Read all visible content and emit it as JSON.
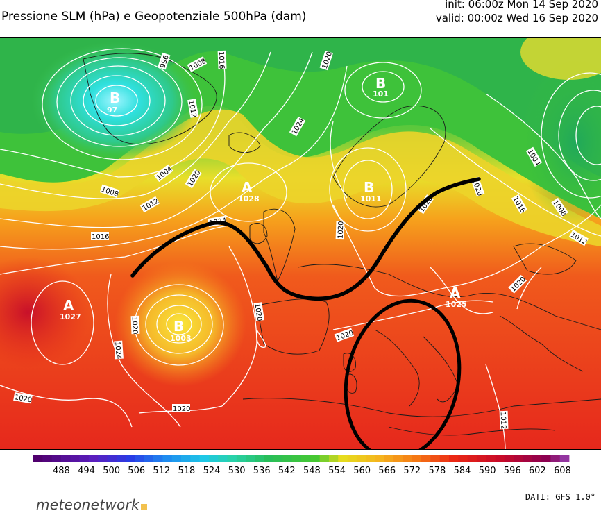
{
  "header": {
    "title": "Pressione SLM (hPa) e Geopotenziale 500hPa (dam)",
    "init": "init: 06:00z Mon 14 Sep 2020",
    "valid": "valid: 00:00z Wed 16 Sep 2020"
  },
  "map": {
    "isobar_labels": [
      "996",
      "1008",
      "1016",
      "1020",
      "1012",
      "1024",
      "1004",
      "1008",
      "1012",
      "1016",
      "1020",
      "1024",
      "1020",
      "1020",
      "1024",
      "1020",
      "1020",
      "1020",
      "1004",
      "1016",
      "1008",
      "1012",
      "1020",
      "1012",
      "1020",
      "1020",
      "1020"
    ],
    "pressure_centers": [
      {
        "letter": "B",
        "value": "97"
      },
      {
        "letter": "B",
        "value": "101"
      },
      {
        "letter": "A",
        "value": "1028"
      },
      {
        "letter": "B",
        "value": "1011"
      },
      {
        "letter": "A",
        "value": "1027"
      },
      {
        "letter": "B",
        "value": "1003"
      },
      {
        "letter": "A",
        "value": "1025"
      }
    ],
    "colors": {
      "green": "#3cbf3a",
      "cyan": "#2ee0d8",
      "yellow": "#f3e21a",
      "orange": "#f5901a",
      "red": "#ea2a1c"
    }
  },
  "colorbar": {
    "ticks": [
      "488",
      "494",
      "500",
      "506",
      "512",
      "518",
      "524",
      "530",
      "536",
      "542",
      "548",
      "554",
      "560",
      "566",
      "572",
      "578",
      "584",
      "590",
      "596",
      "602",
      "608"
    ]
  },
  "footer": {
    "brand": "meteonetwork",
    "source": "DATI: GFS 1.0°"
  }
}
